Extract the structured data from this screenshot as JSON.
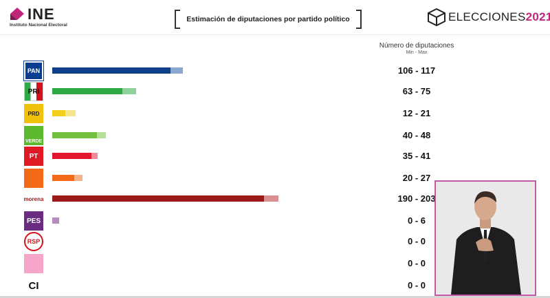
{
  "header": {
    "ine_name": "INE",
    "ine_subtitle": "Instituto Nacional Electoral",
    "title": "Estimación de diputaciones por partido político",
    "brand_main": "ELECCIONES",
    "brand_year": "2021"
  },
  "columns": {
    "range_title": "Número de diputaciones",
    "range_sub": "Min - Max"
  },
  "colors": {
    "accent": "#c0267a"
  },
  "parties": [
    {
      "logo_text": "PAN",
      "icon": "pan-logo",
      "range_label": "106 - 117",
      "min": 106,
      "max": 117,
      "color_min": "#0f3f86",
      "color_max": "#8aa8cf",
      "logo_bg": "#0a3d8f"
    },
    {
      "logo_text": "PRI",
      "icon": "pri-logo",
      "range_label": "63 - 75",
      "min": 63,
      "max": 75,
      "color_min": "#2ea946",
      "color_max": "#8fd39b",
      "logo_bg": "#ffffff"
    },
    {
      "logo_text": "PRD",
      "icon": "prd-logo",
      "range_label": "12 - 21",
      "min": 12,
      "max": 21,
      "color_min": "#f2cf1c",
      "color_max": "#f7e589",
      "logo_bg": "#f1c20d"
    },
    {
      "logo_text": "VERDE",
      "icon": "verde-logo",
      "range_label": "40 - 48",
      "min": 40,
      "max": 48,
      "color_min": "#73bf3f",
      "color_max": "#b6df9a",
      "logo_bg": "#5cb82e"
    },
    {
      "logo_text": "PT",
      "icon": "pt-logo",
      "range_label": "35 - 41",
      "min": 35,
      "max": 41,
      "color_min": "#e2162e",
      "color_max": "#f08c97",
      "logo_bg": "#e01a24"
    },
    {
      "logo_text": "",
      "icon": "mc-logo",
      "range_label": "20 - 27",
      "min": 20,
      "max": 27,
      "color_min": "#f26a17",
      "color_max": "#f7b387",
      "logo_bg": "#f26a17"
    },
    {
      "logo_text": "morena",
      "icon": "morena-logo",
      "range_label": "190 - 203",
      "min": 190,
      "max": 203,
      "color_min": "#9b1b1b",
      "color_max": "#d98f8f",
      "logo_bg": "#ffffff"
    },
    {
      "logo_text": "PES",
      "icon": "pes-logo",
      "range_label": "0 - 6",
      "min": 0,
      "max": 6,
      "color_min": "#8a4a9c",
      "color_max": "#b58bc0",
      "logo_bg": "#6a2c81"
    },
    {
      "logo_text": "RSP",
      "icon": "rsp-logo",
      "range_label": "0 - 0",
      "min": 0,
      "max": 0,
      "color_min": "#d4121b",
      "color_max": "#d4121b",
      "logo_bg": "#ffffff"
    },
    {
      "logo_text": "",
      "icon": "fxm-logo",
      "range_label": "0 - 0",
      "min": 0,
      "max": 0,
      "color_min": "#f07ab0",
      "color_max": "#f07ab0",
      "logo_bg": "#f5a6c9"
    },
    {
      "logo_text": "CI",
      "icon": "ci-label",
      "range_label": "0 - 0",
      "min": 0,
      "max": 0,
      "color_min": "#555555",
      "color_max": "#555555",
      "logo_bg": "#ffffff"
    }
  ],
  "chart_data": {
    "type": "bar",
    "title": "Estimación de diputaciones por partido político",
    "categories": [
      "PAN",
      "PRI",
      "PRD",
      "VERDE",
      "PT",
      "MC",
      "morena",
      "PES",
      "RSP",
      "FXM",
      "CI"
    ],
    "series": [
      {
        "name": "Min",
        "values": [
          106,
          63,
          12,
          40,
          35,
          20,
          190,
          0,
          0,
          0,
          0
        ]
      },
      {
        "name": "Max",
        "values": [
          117,
          75,
          21,
          48,
          41,
          27,
          203,
          6,
          0,
          0,
          0
        ]
      }
    ],
    "orientation": "horizontal",
    "xlabel": "",
    "ylabel": "Número de diputaciones",
    "xlim": [
      0,
      215
    ]
  }
}
